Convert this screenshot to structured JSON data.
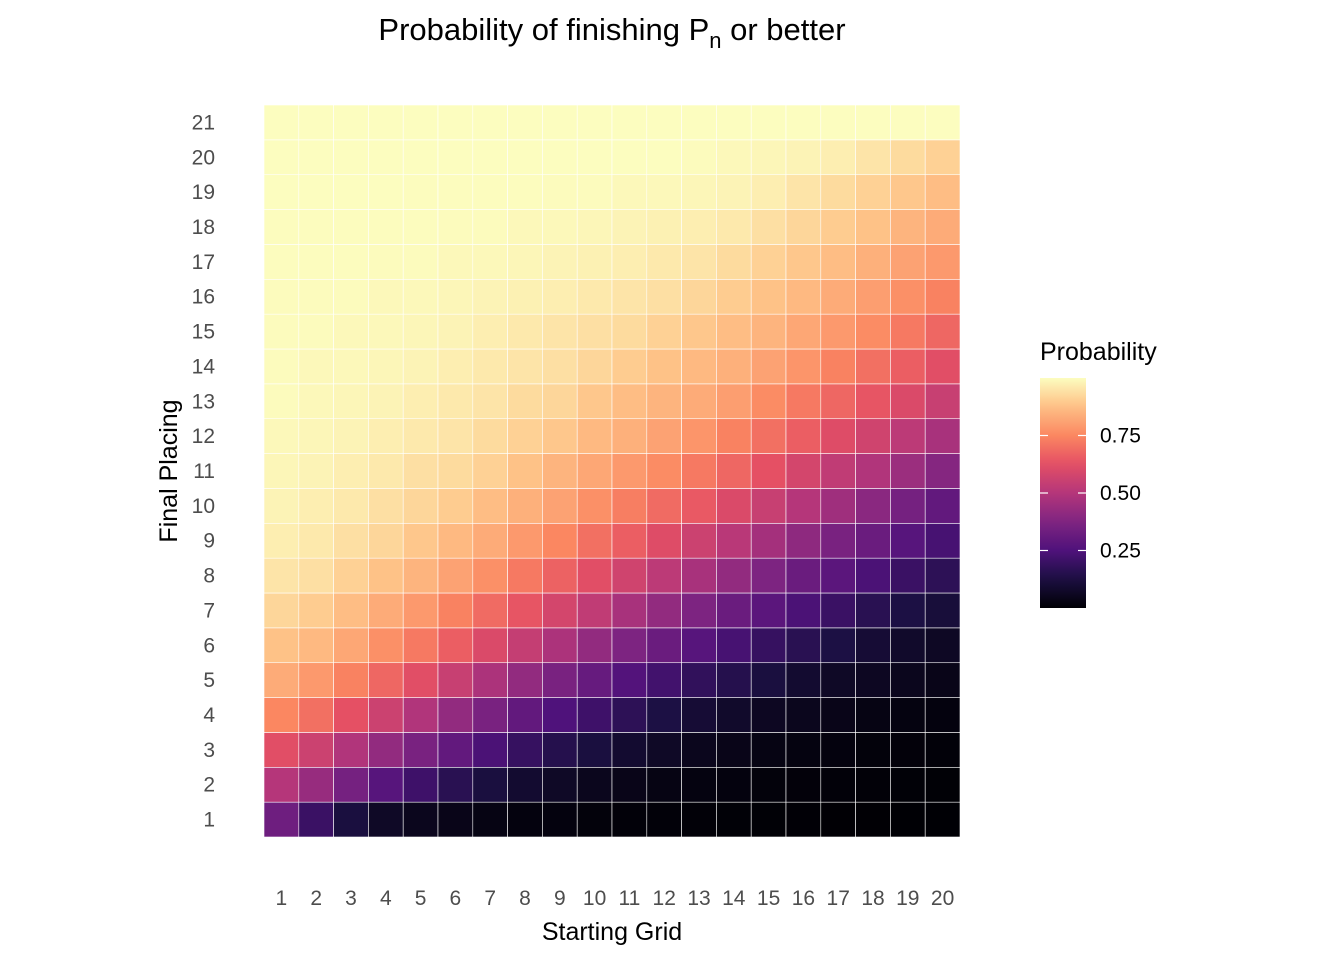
{
  "chart_data": {
    "type": "heatmap",
    "title_main": "Probability of finishing P",
    "title_sub": "n",
    "title_tail": " or better",
    "xlabel": "Starting Grid",
    "ylabel": "Final Placing",
    "x": [
      "1",
      "2",
      "3",
      "4",
      "5",
      "6",
      "7",
      "8",
      "9",
      "10",
      "11",
      "12",
      "13",
      "14",
      "15",
      "16",
      "17",
      "18",
      "19",
      "20"
    ],
    "y": [
      "1",
      "2",
      "3",
      "4",
      "5",
      "6",
      "7",
      "8",
      "9",
      "10",
      "11",
      "12",
      "13",
      "14",
      "15",
      "16",
      "17",
      "18",
      "19",
      "20",
      "21"
    ],
    "colorscale": "magma",
    "grid": true,
    "legend": {
      "title": "Probability",
      "position": "right",
      "ticks": [
        0.25,
        0.5,
        0.75
      ],
      "tick_labels": [
        "0.25",
        "0.50",
        "0.75"
      ],
      "range": [
        0,
        1
      ]
    },
    "values": [
      [
        0.33,
        0.5,
        0.62,
        0.75,
        0.83,
        0.88,
        0.92,
        0.95,
        0.97,
        0.98,
        0.985,
        0.99,
        0.995,
        0.995,
        0.995,
        0.995,
        0.998,
        0.998,
        1.0,
        1.0,
        1.0
      ],
      [
        0.2,
        0.43,
        0.56,
        0.7,
        0.79,
        0.86,
        0.9,
        0.94,
        0.96,
        0.97,
        0.98,
        0.985,
        0.99,
        0.99,
        0.995,
        0.995,
        0.997,
        0.998,
        1.0,
        1.0,
        1.0
      ],
      [
        0.12,
        0.35,
        0.49,
        0.63,
        0.74,
        0.82,
        0.87,
        0.91,
        0.94,
        0.96,
        0.97,
        0.98,
        0.985,
        0.99,
        0.99,
        0.995,
        0.997,
        0.998,
        0.999,
        1.0,
        1.0
      ],
      [
        0.07,
        0.27,
        0.42,
        0.56,
        0.68,
        0.77,
        0.83,
        0.88,
        0.92,
        0.94,
        0.96,
        0.97,
        0.98,
        0.985,
        0.99,
        0.99,
        0.995,
        0.997,
        0.999,
        1.0,
        1.0
      ],
      [
        0.05,
        0.21,
        0.36,
        0.49,
        0.62,
        0.72,
        0.79,
        0.85,
        0.89,
        0.92,
        0.94,
        0.96,
        0.97,
        0.98,
        0.985,
        0.99,
        0.995,
        0.997,
        0.998,
        1.0,
        1.0
      ],
      [
        0.04,
        0.16,
        0.3,
        0.42,
        0.55,
        0.66,
        0.74,
        0.81,
        0.86,
        0.9,
        0.93,
        0.95,
        0.96,
        0.97,
        0.98,
        0.985,
        0.99,
        0.995,
        0.998,
        1.0,
        1.0
      ],
      [
        0.03,
        0.12,
        0.24,
        0.36,
        0.48,
        0.6,
        0.69,
        0.77,
        0.83,
        0.87,
        0.91,
        0.93,
        0.95,
        0.96,
        0.97,
        0.98,
        0.99,
        0.995,
        0.998,
        1.0,
        1.0
      ],
      [
        0.02,
        0.09,
        0.19,
        0.3,
        0.42,
        0.54,
        0.64,
        0.72,
        0.79,
        0.84,
        0.88,
        0.91,
        0.93,
        0.95,
        0.96,
        0.975,
        0.985,
        0.99,
        0.997,
        1.0,
        1.0
      ],
      [
        0.02,
        0.07,
        0.15,
        0.25,
        0.36,
        0.48,
        0.58,
        0.67,
        0.75,
        0.81,
        0.85,
        0.89,
        0.92,
        0.94,
        0.95,
        0.97,
        0.98,
        0.99,
        0.996,
        1.0,
        1.0
      ],
      [
        0.015,
        0.05,
        0.12,
        0.21,
        0.31,
        0.42,
        0.53,
        0.62,
        0.7,
        0.77,
        0.82,
        0.86,
        0.89,
        0.92,
        0.94,
        0.96,
        0.975,
        0.985,
        0.995,
        1.0,
        1.0
      ],
      [
        0.01,
        0.04,
        0.09,
        0.17,
        0.26,
        0.37,
        0.47,
        0.57,
        0.66,
        0.73,
        0.79,
        0.84,
        0.87,
        0.9,
        0.93,
        0.95,
        0.97,
        0.98,
        0.99,
        1.0,
        1.0
      ],
      [
        0.01,
        0.03,
        0.07,
        0.13,
        0.22,
        0.32,
        0.42,
        0.52,
        0.61,
        0.69,
        0.76,
        0.81,
        0.85,
        0.88,
        0.91,
        0.94,
        0.96,
        0.975,
        0.99,
        1.0,
        1.0
      ],
      [
        0.008,
        0.025,
        0.05,
        0.1,
        0.18,
        0.27,
        0.37,
        0.47,
        0.56,
        0.65,
        0.72,
        0.78,
        0.83,
        0.86,
        0.89,
        0.92,
        0.95,
        0.97,
        0.985,
        0.995,
        1.0
      ],
      [
        0.006,
        0.02,
        0.04,
        0.08,
        0.15,
        0.23,
        0.32,
        0.42,
        0.51,
        0.6,
        0.68,
        0.74,
        0.8,
        0.84,
        0.87,
        0.9,
        0.93,
        0.96,
        0.98,
        0.99,
        1.0
      ],
      [
        0.005,
        0.015,
        0.03,
        0.06,
        0.12,
        0.19,
        0.28,
        0.37,
        0.46,
        0.55,
        0.63,
        0.7,
        0.76,
        0.81,
        0.85,
        0.88,
        0.91,
        0.94,
        0.97,
        0.985,
        1.0
      ],
      [
        0.004,
        0.012,
        0.025,
        0.05,
        0.09,
        0.16,
        0.24,
        0.32,
        0.41,
        0.5,
        0.58,
        0.66,
        0.72,
        0.78,
        0.82,
        0.86,
        0.89,
        0.92,
        0.95,
        0.98,
        1.0
      ],
      [
        0.003,
        0.01,
        0.02,
        0.04,
        0.07,
        0.13,
        0.2,
        0.28,
        0.36,
        0.45,
        0.53,
        0.61,
        0.68,
        0.74,
        0.79,
        0.83,
        0.87,
        0.9,
        0.93,
        0.97,
        1.0
      ],
      [
        0.003,
        0.008,
        0.015,
        0.03,
        0.06,
        0.1,
        0.16,
        0.24,
        0.32,
        0.4,
        0.49,
        0.57,
        0.64,
        0.7,
        0.76,
        0.8,
        0.84,
        0.88,
        0.91,
        0.95,
        1.0
      ],
      [
        0.002,
        0.006,
        0.012,
        0.025,
        0.05,
        0.08,
        0.13,
        0.2,
        0.27,
        0.35,
        0.44,
        0.52,
        0.6,
        0.66,
        0.72,
        0.77,
        0.81,
        0.85,
        0.89,
        0.93,
        1.0
      ],
      [
        0.002,
        0.005,
        0.01,
        0.02,
        0.04,
        0.065,
        0.11,
        0.17,
        0.23,
        0.3,
        0.39,
        0.47,
        0.55,
        0.62,
        0.68,
        0.74,
        0.79,
        0.83,
        0.87,
        0.91,
        1.0
      ]
    ]
  }
}
